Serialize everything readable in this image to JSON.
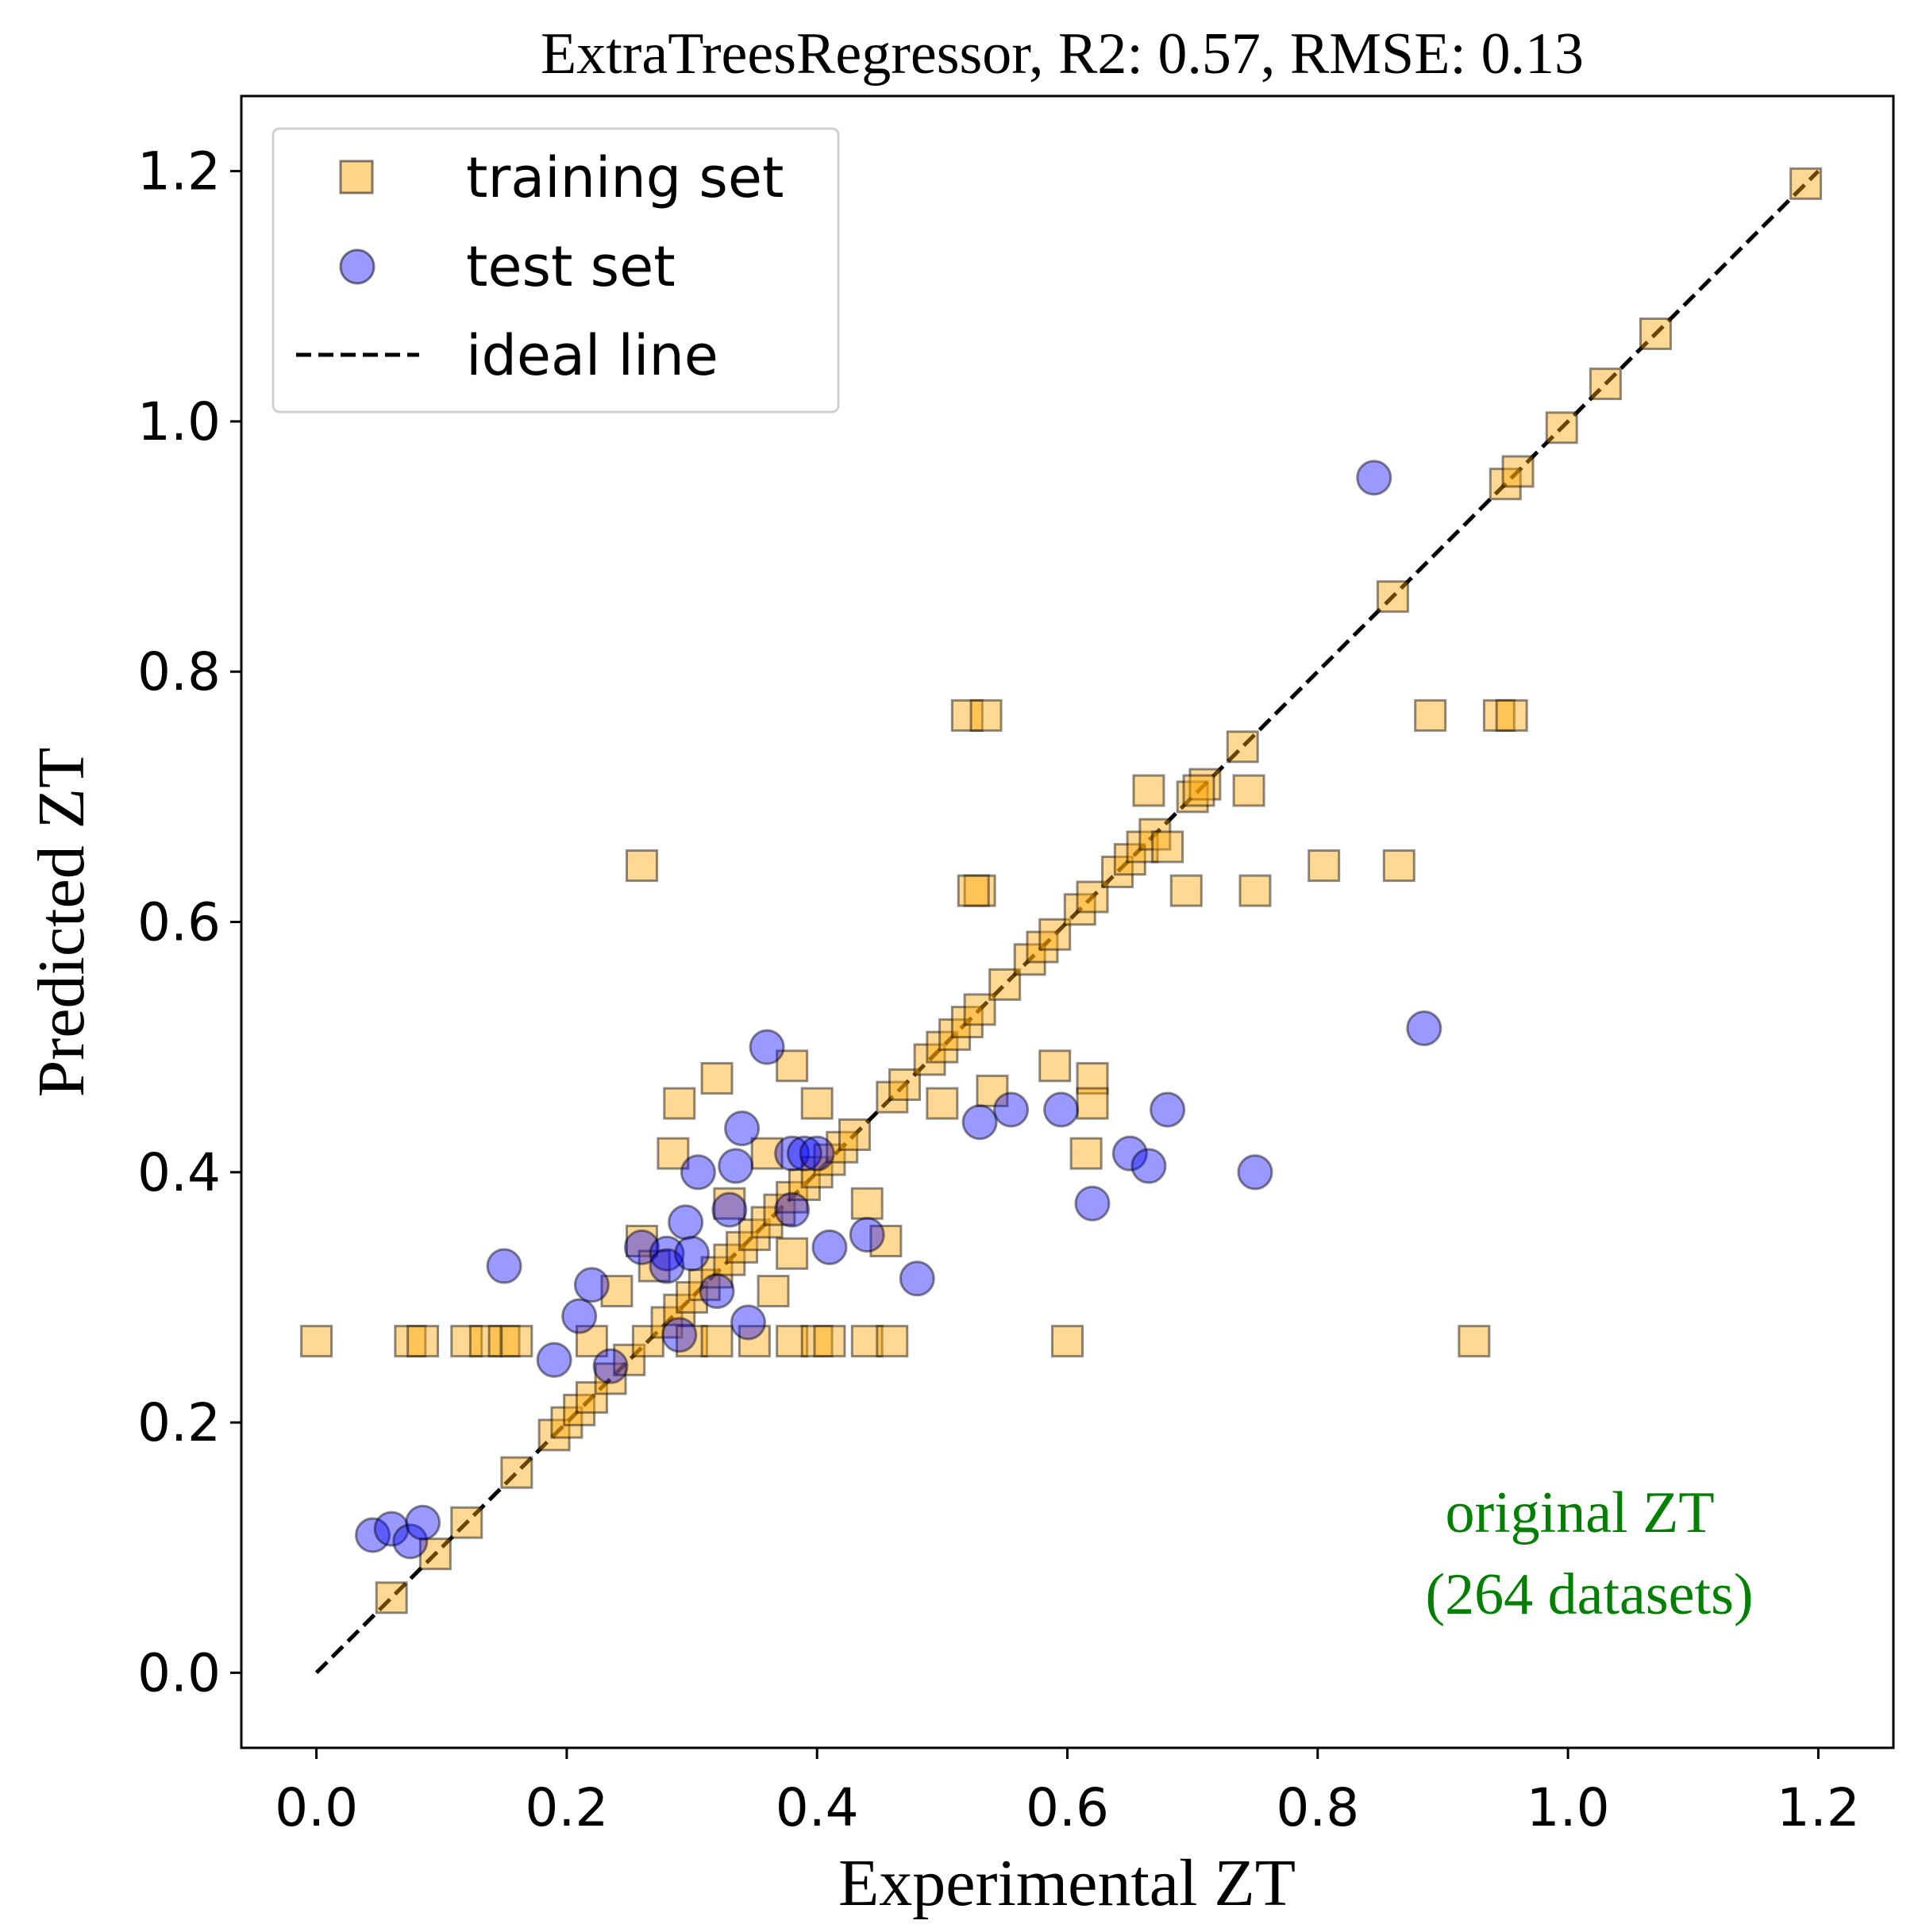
{
  "chart_data": {
    "type": "scatter",
    "title": "ExtraTreesRegressor, R2: 0.57, RMSE: 0.13",
    "xlabel": "Experimental ZT",
    "ylabel": "Predicted ZT",
    "xlim": [
      -0.06,
      1.26
    ],
    "ylim": [
      -0.06,
      1.26
    ],
    "xticks": [
      0.0,
      0.2,
      0.4,
      0.6,
      0.8,
      1.0,
      1.2
    ],
    "yticks": [
      0.0,
      0.2,
      0.4,
      0.6,
      0.8,
      1.0,
      1.2
    ],
    "tick_labels": [
      "0.0",
      "0.2",
      "0.4",
      "0.6",
      "0.8",
      "1.0",
      "1.2"
    ],
    "grid": false,
    "legend_position": "top-left",
    "annotation": {
      "lines": [
        "original ZT",
        "(264 datasets)"
      ],
      "color": "#008000"
    },
    "series": [
      {
        "name": "training set",
        "marker": "square",
        "color": "#FFA500",
        "points": [
          [
            0.06,
            0.06
          ],
          [
            0.095,
            0.095
          ],
          [
            0.12,
            0.12
          ],
          [
            0.16,
            0.16
          ],
          [
            0.19,
            0.19
          ],
          [
            0.2,
            0.2
          ],
          [
            0.21,
            0.21
          ],
          [
            0.22,
            0.22
          ],
          [
            0.235,
            0.235
          ],
          [
            0.25,
            0.25
          ],
          [
            0.265,
            0.265
          ],
          [
            0.28,
            0.28
          ],
          [
            0.29,
            0.29
          ],
          [
            0.3,
            0.3
          ],
          [
            0.31,
            0.31
          ],
          [
            0.32,
            0.32
          ],
          [
            0.33,
            0.33
          ],
          [
            0.34,
            0.34
          ],
          [
            0.35,
            0.35
          ],
          [
            0.36,
            0.36
          ],
          [
            0.37,
            0.37
          ],
          [
            0.38,
            0.38
          ],
          [
            0.39,
            0.39
          ],
          [
            0.4,
            0.4
          ],
          [
            0.41,
            0.41
          ],
          [
            0.42,
            0.42
          ],
          [
            0.43,
            0.43
          ],
          [
            0.46,
            0.46
          ],
          [
            0.47,
            0.47
          ],
          [
            0.49,
            0.49
          ],
          [
            0.5,
            0.5
          ],
          [
            0.51,
            0.51
          ],
          [
            0.52,
            0.52
          ],
          [
            0.53,
            0.53
          ],
          [
            0.55,
            0.55
          ],
          [
            0.57,
            0.57
          ],
          [
            0.58,
            0.58
          ],
          [
            0.59,
            0.59
          ],
          [
            0.61,
            0.61
          ],
          [
            0.62,
            0.62
          ],
          [
            0.64,
            0.64
          ],
          [
            0.65,
            0.65
          ],
          [
            0.66,
            0.66
          ],
          [
            0.67,
            0.67
          ],
          [
            0.7,
            0.7
          ],
          [
            0.71,
            0.71
          ],
          [
            0.74,
            0.74
          ],
          [
            0.86,
            0.86
          ],
          [
            0.95,
            0.95
          ],
          [
            0.96,
            0.96
          ],
          [
            0.995,
            0.995
          ],
          [
            1.03,
            1.03
          ],
          [
            1.07,
            1.07
          ],
          [
            1.19,
            1.19
          ],
          [
            0.0,
            0.265
          ],
          [
            0.075,
            0.265
          ],
          [
            0.085,
            0.265
          ],
          [
            0.12,
            0.265
          ],
          [
            0.135,
            0.265
          ],
          [
            0.15,
            0.265
          ],
          [
            0.16,
            0.265
          ],
          [
            0.22,
            0.265
          ],
          [
            0.3,
            0.265
          ],
          [
            0.32,
            0.265
          ],
          [
            0.35,
            0.265
          ],
          [
            0.38,
            0.265
          ],
          [
            0.4,
            0.265
          ],
          [
            0.41,
            0.265
          ],
          [
            0.44,
            0.265
          ],
          [
            0.46,
            0.265
          ],
          [
            0.6,
            0.265
          ],
          [
            0.925,
            0.265
          ],
          [
            0.26,
            0.645
          ],
          [
            0.52,
            0.765
          ],
          [
            0.535,
            0.765
          ],
          [
            0.89,
            0.765
          ],
          [
            0.945,
            0.765
          ],
          [
            0.955,
            0.765
          ],
          [
            0.53,
            0.625
          ],
          [
            0.525,
            0.625
          ],
          [
            0.695,
            0.625
          ],
          [
            0.75,
            0.625
          ],
          [
            0.805,
            0.645
          ],
          [
            0.865,
            0.645
          ],
          [
            0.665,
            0.705
          ],
          [
            0.705,
            0.705
          ],
          [
            0.745,
            0.705
          ],
          [
            0.68,
            0.66
          ],
          [
            0.59,
            0.485
          ],
          [
            0.62,
            0.475
          ],
          [
            0.62,
            0.455
          ],
          [
            0.615,
            0.415
          ],
          [
            0.5,
            0.455
          ],
          [
            0.54,
            0.465
          ],
          [
            0.29,
            0.455
          ],
          [
            0.32,
            0.475
          ],
          [
            0.38,
            0.485
          ],
          [
            0.4,
            0.455
          ],
          [
            0.285,
            0.415
          ],
          [
            0.33,
            0.375
          ],
          [
            0.36,
            0.415
          ],
          [
            0.44,
            0.375
          ],
          [
            0.455,
            0.345
          ],
          [
            0.26,
            0.345
          ],
          [
            0.24,
            0.305
          ],
          [
            0.27,
            0.325
          ],
          [
            0.38,
            0.335
          ],
          [
            0.365,
            0.305
          ]
        ]
      },
      {
        "name": "test set",
        "marker": "circle",
        "color": "#0000FF",
        "points": [
          [
            0.045,
            0.11
          ],
          [
            0.06,
            0.115
          ],
          [
            0.075,
            0.105
          ],
          [
            0.085,
            0.12
          ],
          [
            0.15,
            0.325
          ],
          [
            0.19,
            0.25
          ],
          [
            0.21,
            0.285
          ],
          [
            0.22,
            0.31
          ],
          [
            0.235,
            0.245
          ],
          [
            0.26,
            0.34
          ],
          [
            0.28,
            0.335
          ],
          [
            0.28,
            0.325
          ],
          [
            0.29,
            0.27
          ],
          [
            0.295,
            0.36
          ],
          [
            0.3,
            0.335
          ],
          [
            0.305,
            0.4
          ],
          [
            0.32,
            0.305
          ],
          [
            0.33,
            0.37
          ],
          [
            0.335,
            0.405
          ],
          [
            0.34,
            0.435
          ],
          [
            0.345,
            0.28
          ],
          [
            0.36,
            0.5
          ],
          [
            0.38,
            0.415
          ],
          [
            0.38,
            0.37
          ],
          [
            0.39,
            0.415
          ],
          [
            0.4,
            0.415
          ],
          [
            0.41,
            0.34
          ],
          [
            0.44,
            0.35
          ],
          [
            0.48,
            0.315
          ],
          [
            0.53,
            0.44
          ],
          [
            0.555,
            0.45
          ],
          [
            0.595,
            0.45
          ],
          [
            0.62,
            0.375
          ],
          [
            0.65,
            0.415
          ],
          [
            0.665,
            0.405
          ],
          [
            0.68,
            0.45
          ],
          [
            0.75,
            0.4
          ],
          [
            0.845,
            0.955
          ],
          [
            0.885,
            0.515
          ]
        ]
      },
      {
        "name": "ideal line",
        "marker": "dashed-line",
        "color": "#000000",
        "points": [
          [
            0.0,
            0.0
          ],
          [
            1.2,
            1.2
          ]
        ]
      }
    ]
  }
}
